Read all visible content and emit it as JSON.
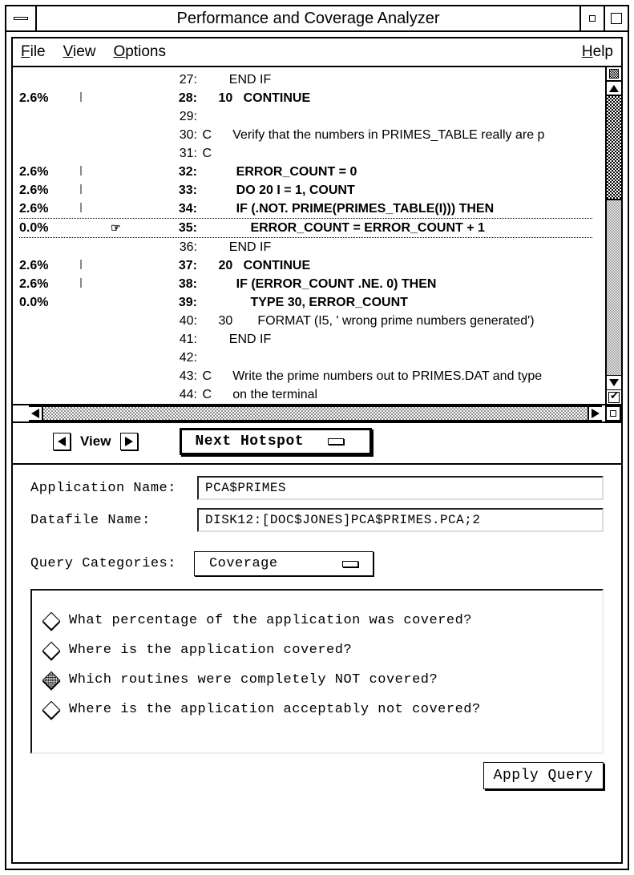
{
  "window": {
    "title": "Performance and Coverage Analyzer"
  },
  "menu": {
    "file": "File",
    "view": "View",
    "options": "Options",
    "help": "Help"
  },
  "code": {
    "lines": [
      {
        "pct": "",
        "ind": "",
        "mark": "",
        "num": "27:",
        "c": "",
        "text": "    END IF",
        "bold": false
      },
      {
        "pct": "2.6%",
        "ind": "|",
        "mark": "",
        "num": "28:",
        "c": "",
        "text": " 10   CONTINUE",
        "bold": true
      },
      {
        "pct": "",
        "ind": "",
        "mark": "",
        "num": "29:",
        "c": "",
        "text": "",
        "bold": false
      },
      {
        "pct": "",
        "ind": "",
        "mark": "",
        "num": "30:",
        "c": "C",
        "text": "     Verify that the numbers in PRIMES_TABLE really are p",
        "bold": false
      },
      {
        "pct": "",
        "ind": "",
        "mark": "",
        "num": "31:",
        "c": "C",
        "text": "",
        "bold": false
      },
      {
        "pct": "2.6%",
        "ind": "|",
        "mark": "",
        "num": "32:",
        "c": "",
        "text": "      ERROR_COUNT = 0",
        "bold": true
      },
      {
        "pct": "2.6%",
        "ind": "|",
        "mark": "",
        "num": "33:",
        "c": "",
        "text": "      DO 20 I = 1, COUNT",
        "bold": true
      },
      {
        "pct": "2.6%",
        "ind": "|",
        "mark": "",
        "num": "34:",
        "c": "",
        "text": "      IF (.NOT. PRIME(PRIMES_TABLE(I))) THEN",
        "bold": true
      },
      {
        "pct": "0.0%",
        "ind": "",
        "mark": "☞",
        "num": "35:",
        "c": "",
        "text": "          ERROR_COUNT = ERROR_COUNT + 1",
        "bold": true,
        "dotted": true
      },
      {
        "pct": "",
        "ind": "",
        "mark": "",
        "num": "36:",
        "c": "",
        "text": "    END IF",
        "bold": false
      },
      {
        "pct": "2.6%",
        "ind": "|",
        "mark": "",
        "num": "37:",
        "c": "",
        "text": " 20   CONTINUE",
        "bold": true
      },
      {
        "pct": "2.6%",
        "ind": "|",
        "mark": "",
        "num": "38:",
        "c": "",
        "text": "      IF (ERROR_COUNT .NE. 0) THEN",
        "bold": true
      },
      {
        "pct": "0.0%",
        "ind": "",
        "mark": "",
        "num": "39:",
        "c": "",
        "text": "          TYPE 30, ERROR_COUNT",
        "bold": true
      },
      {
        "pct": "",
        "ind": "",
        "mark": "",
        "num": "40:",
        "c": "",
        "text": " 30       FORMAT (I5, ' wrong prime numbers generated')",
        "bold": false
      },
      {
        "pct": "",
        "ind": "",
        "mark": "",
        "num": "41:",
        "c": "",
        "text": "    END IF",
        "bold": false
      },
      {
        "pct": "",
        "ind": "",
        "mark": "",
        "num": "42:",
        "c": "",
        "text": "",
        "bold": false
      },
      {
        "pct": "",
        "ind": "",
        "mark": "",
        "num": "43:",
        "c": "C",
        "text": "     Write the prime numbers out to PRIMES.DAT and type",
        "bold": false
      },
      {
        "pct": "",
        "ind": "",
        "mark": "",
        "num": "44:",
        "c": "C",
        "text": "     on the terminal",
        "bold": false
      }
    ]
  },
  "controls": {
    "view_label": "View",
    "next_hotspot": "Next Hotspot"
  },
  "form": {
    "app_name_label": "Application Name:",
    "app_name_value": "PCA$PRIMES",
    "datafile_label": "Datafile Name:",
    "datafile_value": "DISK12:[DOC$JONES]PCA$PRIMES.PCA;2",
    "category_label": "Query Categories:",
    "category_value": "Coverage"
  },
  "queries": {
    "q1": "What percentage of the application was covered?",
    "q2": "Where is the application covered?",
    "q3": "Which routines were completely NOT covered?",
    "q4": "Where is the application acceptably not covered?",
    "selected_index": 2
  },
  "buttons": {
    "apply": "Apply Query"
  },
  "style": {
    "background": "#ffffff",
    "border": "#000000",
    "stipple": "#888888",
    "font_mono": "Courier New",
    "font_sans": "Helvetica"
  }
}
